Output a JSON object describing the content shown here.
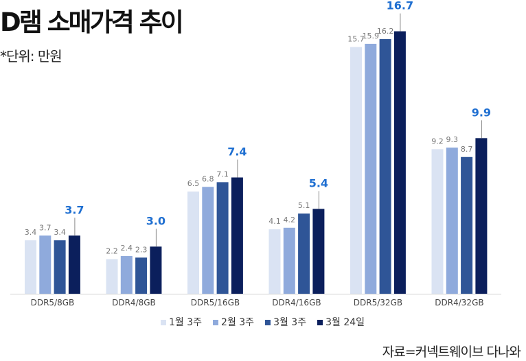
{
  "title": "D램 소매가격 추이",
  "unit_note": "*단위: 만원",
  "source": "자료=커넥트웨이브 다나와",
  "chart_data": {
    "type": "bar",
    "categories": [
      "DDR5/8GB",
      "DDR4/8GB",
      "DDR5/16GB",
      "DDR4/16GB",
      "DDR5/32GB",
      "DDR4/32GB"
    ],
    "series": [
      {
        "name": "1월 3주",
        "color": "#dae3f3",
        "values": [
          3.4,
          2.2,
          6.5,
          4.1,
          15.7,
          9.2
        ]
      },
      {
        "name": "2월 3주",
        "color": "#8faadc",
        "values": [
          3.7,
          2.4,
          6.8,
          4.2,
          15.9,
          9.3
        ]
      },
      {
        "name": "3월 3주",
        "color": "#2f5597",
        "values": [
          3.4,
          2.3,
          7.1,
          5.1,
          16.2,
          8.7
        ]
      },
      {
        "name": "3월 24일",
        "color": "#0b1f5c",
        "values": [
          3.7,
          3.0,
          7.4,
          5.4,
          16.7,
          9.9
        ]
      }
    ],
    "highlight_color": "#1f6fd1",
    "ylim": [
      0,
      17
    ],
    "grid": false,
    "legend": "bottom"
  }
}
